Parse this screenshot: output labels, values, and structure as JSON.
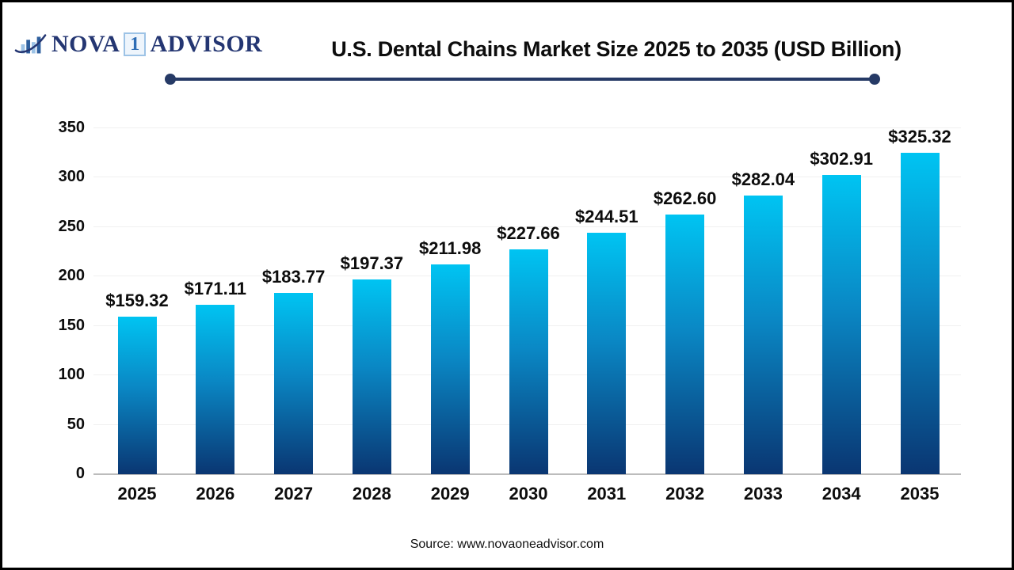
{
  "logo": {
    "icon": "bar-chart-swoosh-icon",
    "text_left": "NOVA",
    "badge": "1",
    "text_right": "ADVISOR"
  },
  "header": {
    "title": "U.S. Dental Chains Market Size 2025 to 2035 (USD Billion)"
  },
  "chart_data": {
    "type": "bar",
    "title": "U.S. Dental Chains Market Size 2025 to 2035 (USD Billion)",
    "categories": [
      "2025",
      "2026",
      "2027",
      "2028",
      "2029",
      "2030",
      "2031",
      "2032",
      "2033",
      "2034",
      "2035"
    ],
    "values": [
      159.32,
      171.11,
      183.77,
      197.37,
      211.98,
      227.66,
      244.51,
      262.6,
      282.04,
      302.91,
      325.32
    ],
    "value_labels": [
      "$159.32",
      "$171.11",
      "$183.77",
      "$197.37",
      "$211.98",
      "$227.66",
      "$244.51",
      "$262.60",
      "$282.04",
      "$302.91",
      "$325.32"
    ],
    "xlabel": "",
    "ylabel": "",
    "ylim": [
      0,
      350
    ],
    "yticks": [
      0,
      50,
      100,
      150,
      200,
      250,
      300,
      350
    ],
    "grid": "horizontal light gray",
    "legend": "none"
  },
  "footer": {
    "source": "Source: www.novaoneadvisor.com"
  },
  "colors": {
    "bar_gradient_top": "#00c4f2",
    "bar_gradient_bottom": "#0a3672",
    "divider_navy": "#263a66",
    "logo_navy": "#243672",
    "logo_light_blue": "#9dc3e6",
    "axis_line": "#bcbcbc",
    "gridline": "#f0f0f0",
    "text": "#0d0d0d"
  }
}
